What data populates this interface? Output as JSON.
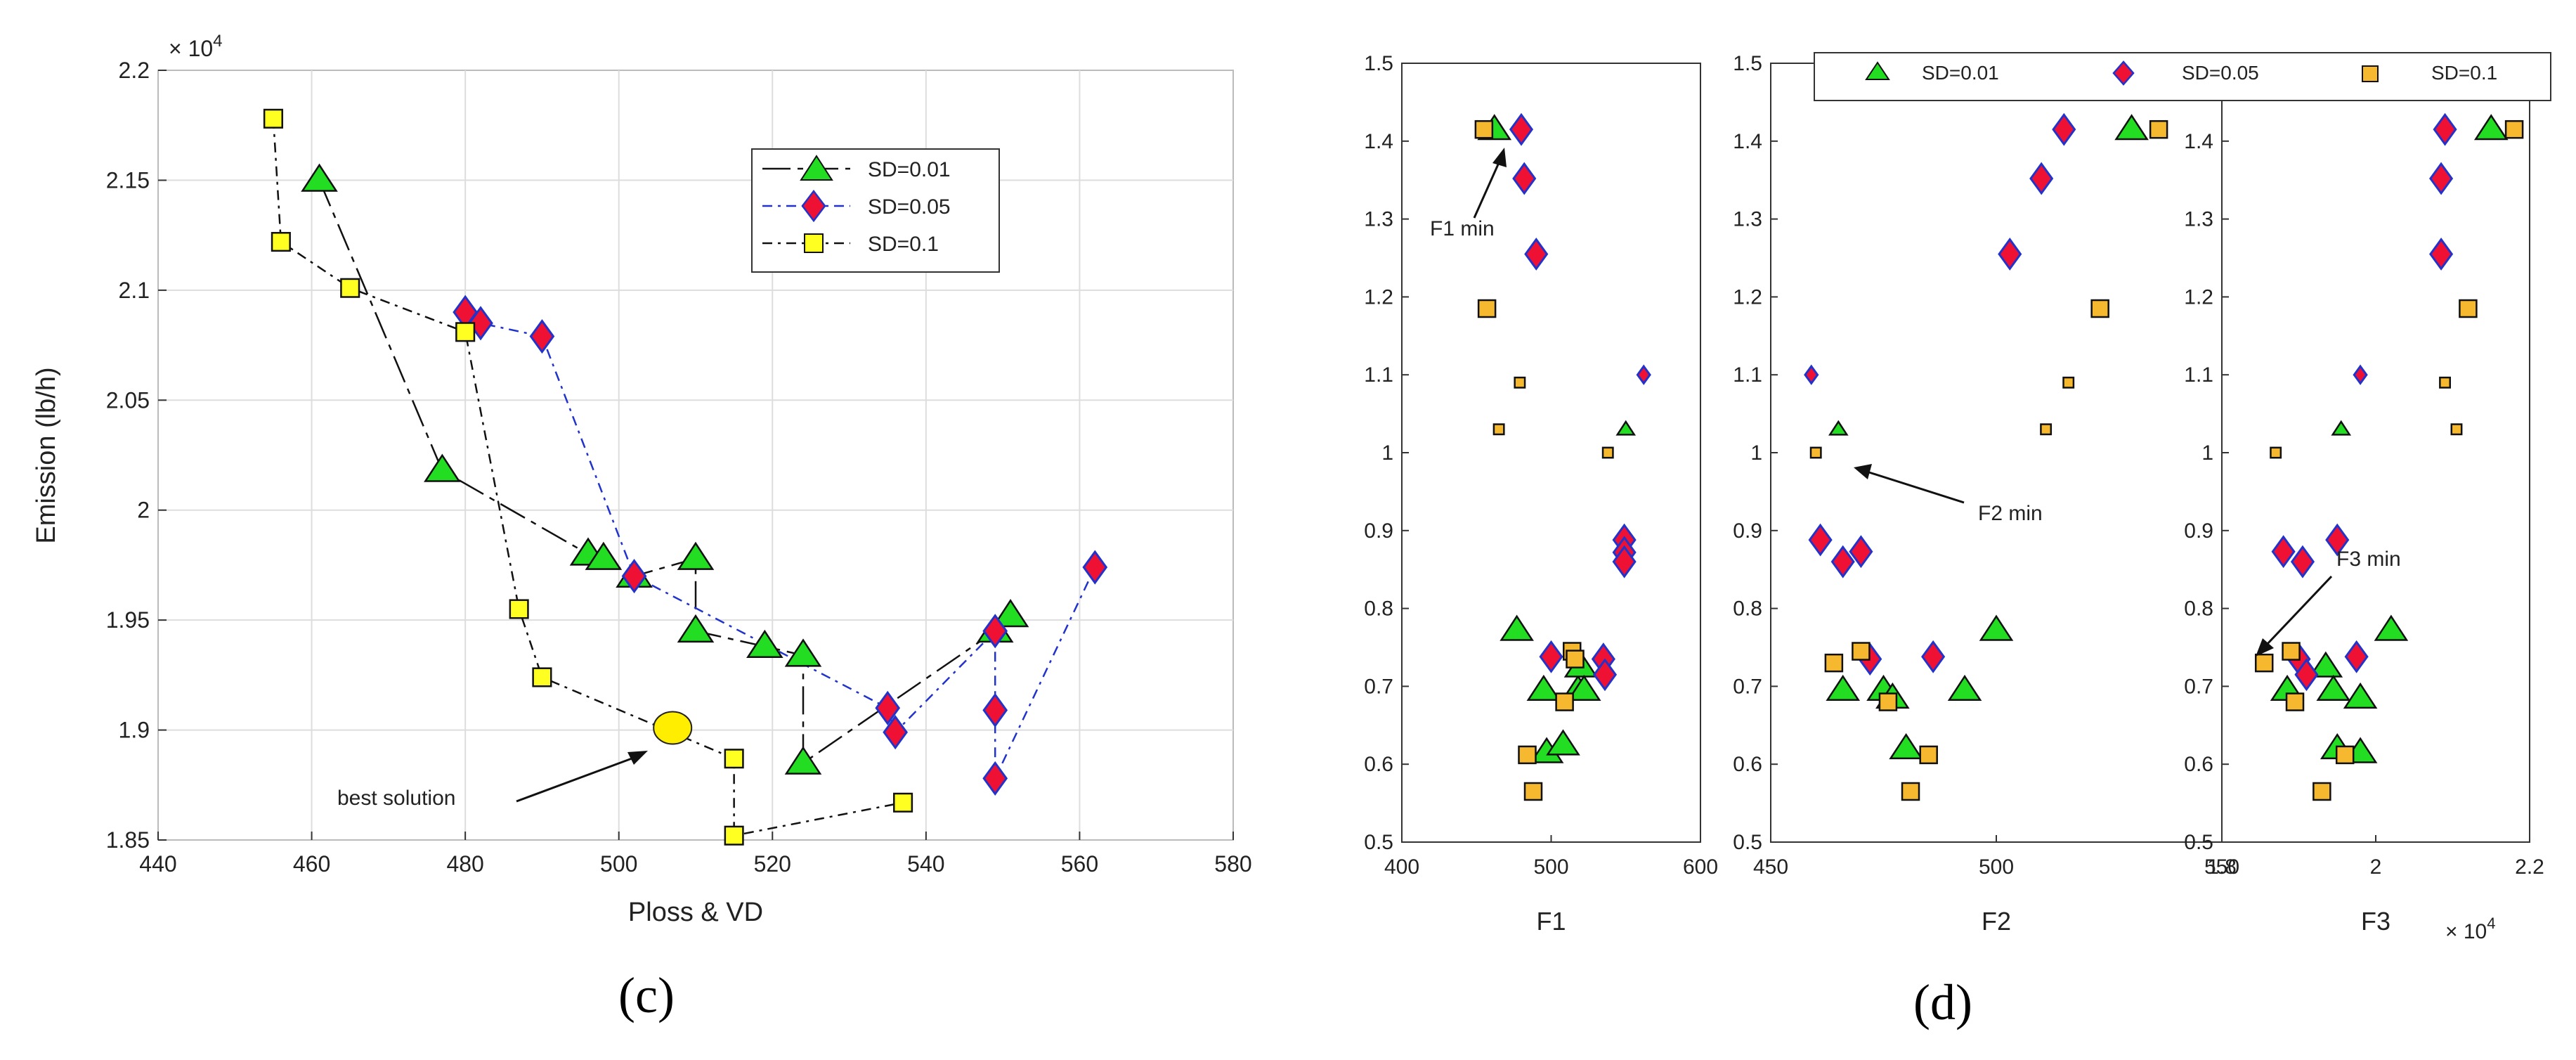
{
  "chart_data": [
    {
      "type": "line",
      "panel": "c",
      "caption": "(c)",
      "xlabel": "Ploss & VD",
      "ylabel": "Emission (lb/h)",
      "xlim": [
        440,
        580
      ],
      "ylim": [
        1.85,
        2.2
      ],
      "xticks": [
        440,
        460,
        480,
        500,
        520,
        540,
        560,
        580
      ],
      "xtick_labels": [
        "440",
        "460",
        "480",
        "500",
        "520",
        "540",
        "560",
        "580"
      ],
      "yticks": [
        1.85,
        1.9,
        1.95,
        2.0,
        2.05,
        2.1,
        2.15,
        2.2
      ],
      "ytick_labels": [
        "1.85",
        "1.9",
        "1.95",
        "2",
        "2.05",
        "2.1",
        "2.15",
        "2.2"
      ],
      "y_multiplier_base": "× 10",
      "y_multiplier_exp": "4",
      "grid": true,
      "legend_position": "top-right",
      "series": [
        {
          "name": "SD=0.01",
          "marker": "triangle",
          "color": "#22dd22",
          "line_color": "#111111",
          "x": [
            461,
            477,
            496,
            498,
            502,
            510,
            510,
            519,
            524,
            524,
            549,
            551
          ],
          "y": [
            2.15,
            2.018,
            1.98,
            1.978,
            1.97,
            1.978,
            1.945,
            1.938,
            1.934,
            1.885,
            1.945,
            1.952
          ]
        },
        {
          "name": "SD=0.05",
          "marker": "diamond",
          "color": "#ee1133",
          "line_color": "#2233cc",
          "x": [
            480,
            482,
            490,
            502,
            535,
            536,
            549,
            549,
            549,
            562
          ],
          "y": [
            2.09,
            2.085,
            2.079,
            1.97,
            1.91,
            1.899,
            1.945,
            1.909,
            1.878,
            1.974
          ]
        },
        {
          "name": "SD=0.1",
          "marker": "square",
          "color": "#ffff22",
          "line_color": "#111111",
          "x": [
            455,
            456,
            465,
            480,
            487,
            490,
            515,
            515,
            537
          ],
          "y": [
            2.178,
            2.122,
            2.101,
            2.081,
            1.955,
            1.924,
            1.887,
            1.852,
            1.867
          ]
        }
      ],
      "highlight": {
        "label": "best solution",
        "x": 507,
        "y": 1.901,
        "color": "#ffee00"
      }
    },
    {
      "type": "scatter",
      "panel": "d",
      "caption": "(d)",
      "ylim": [
        0.5,
        1.5
      ],
      "yticks": [
        0.5,
        0.6,
        0.7,
        0.8,
        0.9,
        1.0,
        1.1,
        1.2,
        1.3,
        1.4,
        1.5
      ],
      "ytick_labels": [
        "0.5",
        "0.6",
        "0.7",
        "0.8",
        "0.9",
        "1",
        "1.1",
        "1.2",
        "1.3",
        "1.4",
        "1.5"
      ],
      "legend": [
        "SD=0.01",
        "SD=0.05",
        "SD=0.1"
      ],
      "legend_position": "top",
      "subplots": [
        {
          "xlabel": "F1",
          "xlim": [
            400,
            600
          ],
          "xticks": [
            400,
            500,
            600
          ],
          "xtick_labels": [
            "400",
            "500",
            "600"
          ],
          "annotation": {
            "text": "F1 min",
            "x": 460,
            "y": 1.415
          },
          "series": [
            {
              "name": "SD=0.01",
              "x": [
                462,
                477,
                495,
                497,
                508,
                518,
                520,
                522,
                550
              ],
              "y": [
                1.415,
                0.772,
                0.695,
                0.615,
                0.625,
                0.695,
                0.725,
                0.695,
                1.03
              ]
            },
            {
              "name": "SD=0.05",
              "x": [
                480,
                482,
                490,
                500,
                535,
                536,
                549,
                549,
                549,
                562
              ],
              "y": [
                1.415,
                1.352,
                1.255,
                0.738,
                0.735,
                0.715,
                0.888,
                0.872,
                0.86,
                1.1
              ]
            },
            {
              "name": "SD=0.1",
              "x": [
                455,
                457,
                465,
                479,
                484,
                488,
                509,
                514,
                516,
                538
              ],
              "y": [
                1.415,
                1.185,
                1.03,
                1.09,
                0.612,
                0.565,
                0.68,
                0.745,
                0.735,
                1.0
              ]
            }
          ]
        },
        {
          "xlabel": "F2",
          "xlim": [
            450,
            550
          ],
          "xticks": [
            450,
            500,
            550
          ],
          "xtick_labels": [
            "450",
            "500",
            "550"
          ],
          "annotation": {
            "text": "F2 min",
            "x": 460,
            "y": 1.0
          },
          "series": [
            {
              "name": "SD=0.01",
              "x": [
                465,
                466,
                475,
                477,
                480,
                493,
                500,
                530
              ],
              "y": [
                1.03,
                0.695,
                0.695,
                0.685,
                0.62,
                0.695,
                0.772,
                1.415
              ]
            },
            {
              "name": "SD=0.05",
              "x": [
                459,
                461,
                466,
                470,
                472,
                486,
                510,
                503,
                515
              ],
              "y": [
                1.1,
                0.888,
                0.86,
                0.873,
                0.735,
                0.738,
                1.352,
                1.255,
                1.415
              ]
            },
            {
              "name": "SD=0.1",
              "x": [
                460,
                464,
                470,
                476,
                481,
                485,
                511,
                516,
                523,
                536
              ],
              "y": [
                1.0,
                0.73,
                0.745,
                0.68,
                0.565,
                0.612,
                1.03,
                1.09,
                1.185,
                1.415
              ]
            }
          ]
        },
        {
          "xlabel": "F3",
          "xlim": [
            18000,
            22000
          ],
          "xticks": [
            18000,
            20000,
            22000
          ],
          "xtick_labels": [
            "1.8",
            "2",
            "2.2"
          ],
          "x_multiplier_base": "× 10",
          "x_multiplier_exp": "4",
          "annotation": {
            "text": "F3 min",
            "x": 18520,
            "y": 0.73
          },
          "series": [
            {
              "name": "SD=0.01",
              "x": [
                18850,
                19350,
                19450,
                19500,
                19550,
                19800,
                19800,
                20200,
                21500
              ],
              "y": [
                0.695,
                0.725,
                0.695,
                0.62,
                1.03,
                0.685,
                0.615,
                0.772,
                1.415
              ]
            },
            {
              "name": "SD=0.05",
              "x": [
                18800,
                19000,
                19100,
                19050,
                19500,
                19750,
                19800,
                20850,
                20850,
                20900
              ],
              "y": [
                0.873,
                0.735,
                0.715,
                0.86,
                0.888,
                0.738,
                1.1,
                1.255,
                1.352,
                1.415
              ]
            },
            {
              "name": "SD=0.1",
              "x": [
                18550,
                18700,
                18900,
                18950,
                19300,
                19600,
                20900,
                21050,
                21200,
                21800
              ],
              "y": [
                0.73,
                1.0,
                0.745,
                0.68,
                0.565,
                0.612,
                1.09,
                1.03,
                1.185,
                1.415
              ]
            }
          ]
        }
      ]
    }
  ]
}
